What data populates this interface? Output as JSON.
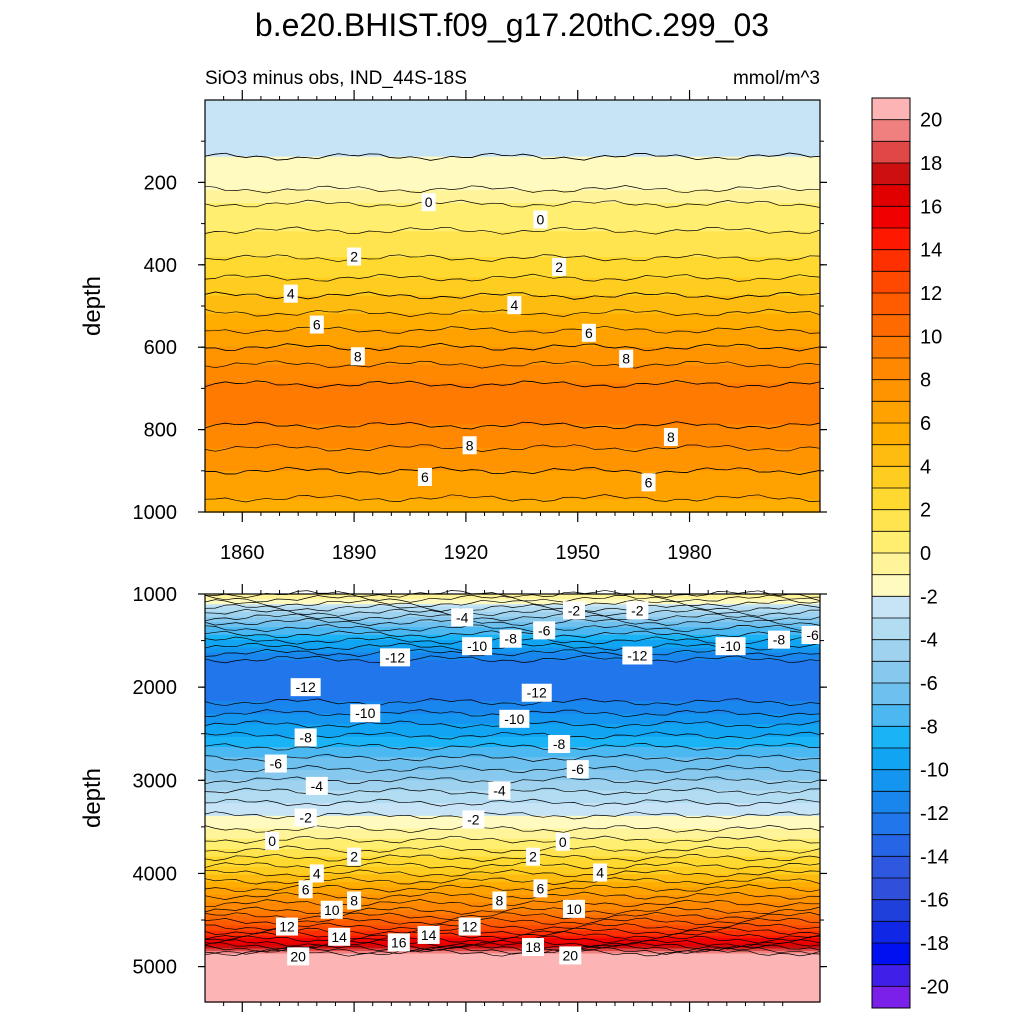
{
  "title": "b.e20.BHIST.f09_g17.20thC.299_03",
  "subtitle_left": "SiO3 minus obs, IND_44S-18S",
  "subtitle_right": "mmol/m^3",
  "chart_data": [
    {
      "type": "heatmap",
      "name": "upper-panel",
      "ylabel": "depth",
      "x_range": [
        1850,
        2015
      ],
      "y_range": [
        0,
        1000
      ],
      "y_reversed": true,
      "x_ticks": [
        1860,
        1890,
        1920,
        1950,
        1980
      ],
      "y_ticks": [
        200,
        400,
        600,
        800,
        1000
      ],
      "profile": [
        [
          0,
          -2.5
        ],
        [
          100,
          -2.3
        ],
        [
          200,
          -1.5
        ],
        [
          240,
          -0.3
        ],
        [
          260,
          0.2
        ],
        [
          300,
          0.8
        ],
        [
          350,
          1.4
        ],
        [
          400,
          2.3
        ],
        [
          450,
          3.4
        ],
        [
          500,
          4.6
        ],
        [
          550,
          5.8
        ],
        [
          600,
          7.0
        ],
        [
          650,
          8.2
        ],
        [
          700,
          9.2
        ],
        [
          720,
          9.8
        ],
        [
          750,
          9.8
        ],
        [
          800,
          8.8
        ],
        [
          850,
          7.9
        ],
        [
          900,
          7.0
        ],
        [
          950,
          6.2
        ],
        [
          1000,
          5.6
        ]
      ],
      "contour_labels": [
        {
          "text": "0",
          "x": 1910,
          "y": 248
        },
        {
          "text": "0",
          "x": 1940,
          "y": 290
        },
        {
          "text": "2",
          "x": 1890,
          "y": 380
        },
        {
          "text": "2",
          "x": 1945,
          "y": 405
        },
        {
          "text": "4",
          "x": 1873,
          "y": 470
        },
        {
          "text": "4",
          "x": 1933,
          "y": 498
        },
        {
          "text": "6",
          "x": 1880,
          "y": 545
        },
        {
          "text": "6",
          "x": 1953,
          "y": 565
        },
        {
          "text": "8",
          "x": 1891,
          "y": 622
        },
        {
          "text": "8",
          "x": 1963,
          "y": 628
        },
        {
          "text": "8",
          "x": 1921,
          "y": 838
        },
        {
          "text": "8",
          "x": 1975,
          "y": 818
        },
        {
          "text": "6",
          "x": 1909,
          "y": 915
        },
        {
          "text": "6",
          "x": 1969,
          "y": 928
        }
      ]
    },
    {
      "type": "heatmap",
      "name": "lower-panel",
      "ylabel": "depth",
      "x_range": [
        1850,
        2015
      ],
      "y_range": [
        1000,
        5380
      ],
      "y_reversed": true,
      "y_ticks": [
        1000,
        2000,
        3000,
        4000,
        5000
      ],
      "profile": [
        [
          1000,
          0
        ],
        [
          1150,
          -3
        ],
        [
          1300,
          -6
        ],
        [
          1500,
          -9
        ],
        [
          1700,
          -12
        ],
        [
          1900,
          -13
        ],
        [
          2100,
          -12.5
        ],
        [
          2400,
          -10
        ],
        [
          2700,
          -7.5
        ],
        [
          3000,
          -5
        ],
        [
          3300,
          -2.5
        ],
        [
          3500,
          -1.2
        ],
        [
          3600,
          -0.3
        ],
        [
          3700,
          0.5
        ],
        [
          3850,
          2.2
        ],
        [
          4000,
          4
        ],
        [
          4200,
          6.5
        ],
        [
          4400,
          9
        ],
        [
          4600,
          12.5
        ],
        [
          4750,
          16
        ],
        [
          4830,
          19
        ],
        [
          4870,
          21
        ],
        [
          5380,
          21
        ]
      ],
      "contour_labels": [
        {
          "text": "-4",
          "x": 1919,
          "y": 1250
        },
        {
          "text": "-2",
          "x": 1949,
          "y": 1175
        },
        {
          "text": "-2",
          "x": 1966,
          "y": 1175
        },
        {
          "text": "-8",
          "x": 1932,
          "y": 1480
        },
        {
          "text": "-6",
          "x": 1941,
          "y": 1390
        },
        {
          "text": "-10",
          "x": 1923,
          "y": 1560
        },
        {
          "text": "-10",
          "x": 1991,
          "y": 1560
        },
        {
          "text": "-8",
          "x": 2004,
          "y": 1490
        },
        {
          "text": "-6",
          "x": 2013,
          "y": 1440
        },
        {
          "text": "-12",
          "x": 1901,
          "y": 1680
        },
        {
          "text": "-12",
          "x": 1966,
          "y": 1660
        },
        {
          "text": "-12",
          "x": 1877,
          "y": 2000
        },
        {
          "text": "-12",
          "x": 1939,
          "y": 2060
        },
        {
          "text": "-10",
          "x": 1893,
          "y": 2280
        },
        {
          "text": "-10",
          "x": 1933,
          "y": 2340
        },
        {
          "text": "-8",
          "x": 1877,
          "y": 2540
        },
        {
          "text": "-8",
          "x": 1945,
          "y": 2610
        },
        {
          "text": "-6",
          "x": 1869,
          "y": 2820
        },
        {
          "text": "-6",
          "x": 1950,
          "y": 2880
        },
        {
          "text": "-4",
          "x": 1880,
          "y": 3060
        },
        {
          "text": "-4",
          "x": 1929,
          "y": 3110
        },
        {
          "text": "-2",
          "x": 1877,
          "y": 3400
        },
        {
          "text": "-2",
          "x": 1922,
          "y": 3420
        },
        {
          "text": "0",
          "x": 1868,
          "y": 3650
        },
        {
          "text": "0",
          "x": 1946,
          "y": 3660
        },
        {
          "text": "2",
          "x": 1890,
          "y": 3820
        },
        {
          "text": "2",
          "x": 1938,
          "y": 3820
        },
        {
          "text": "4",
          "x": 1880,
          "y": 4000
        },
        {
          "text": "4",
          "x": 1956,
          "y": 3990
        },
        {
          "text": "6",
          "x": 1877,
          "y": 4170
        },
        {
          "text": "6",
          "x": 1940,
          "y": 4160
        },
        {
          "text": "8",
          "x": 1890,
          "y": 4290
        },
        {
          "text": "8",
          "x": 1929,
          "y": 4290
        },
        {
          "text": "10",
          "x": 1884,
          "y": 4390
        },
        {
          "text": "10",
          "x": 1949,
          "y": 4380
        },
        {
          "text": "12",
          "x": 1872,
          "y": 4570
        },
        {
          "text": "12",
          "x": 1921,
          "y": 4570
        },
        {
          "text": "14",
          "x": 1886,
          "y": 4680
        },
        {
          "text": "14",
          "x": 1910,
          "y": 4660
        },
        {
          "text": "16",
          "x": 1902,
          "y": 4740
        },
        {
          "text": "18",
          "x": 1938,
          "y": 4790
        },
        {
          "text": "20",
          "x": 1875,
          "y": 4890
        },
        {
          "text": "20",
          "x": 1948,
          "y": 4880
        }
      ]
    }
  ],
  "colorbar": {
    "labels": [
      "20",
      "18",
      "16",
      "14",
      "12",
      "10",
      "8",
      "6",
      "4",
      "2",
      "0",
      "-2",
      "-4",
      "-6",
      "-8",
      "-10",
      "-12",
      "-14",
      "-16",
      "-18",
      "-20"
    ],
    "colors": [
      "#fdb4b4",
      "#f08080",
      "#e04848",
      "#cc1010",
      "#e00000",
      "#f00000",
      "#ff1800",
      "#ff3000",
      "#ff4800",
      "#ff5c00",
      "#ff6a00",
      "#ff7a00",
      "#ff8800",
      "#ff9400",
      "#ffa200",
      "#ffae00",
      "#ffbc10",
      "#ffcc20",
      "#ffd930",
      "#ffe450",
      "#ffee70",
      "#fff49a",
      "#fffac0",
      "#c6e4f6",
      "#b2dcf2",
      "#9ed2ee",
      "#86c8ee",
      "#6ec0ee",
      "#4cb8f2",
      "#1ab4f6",
      "#10a4f2",
      "#1496f0",
      "#1886ec",
      "#2076ea",
      "#2666e6",
      "#2e58e0",
      "#3050dc",
      "#2040dc",
      "#1028e6",
      "#0010f0",
      "#4020e8",
      "#7a20e8"
    ]
  }
}
